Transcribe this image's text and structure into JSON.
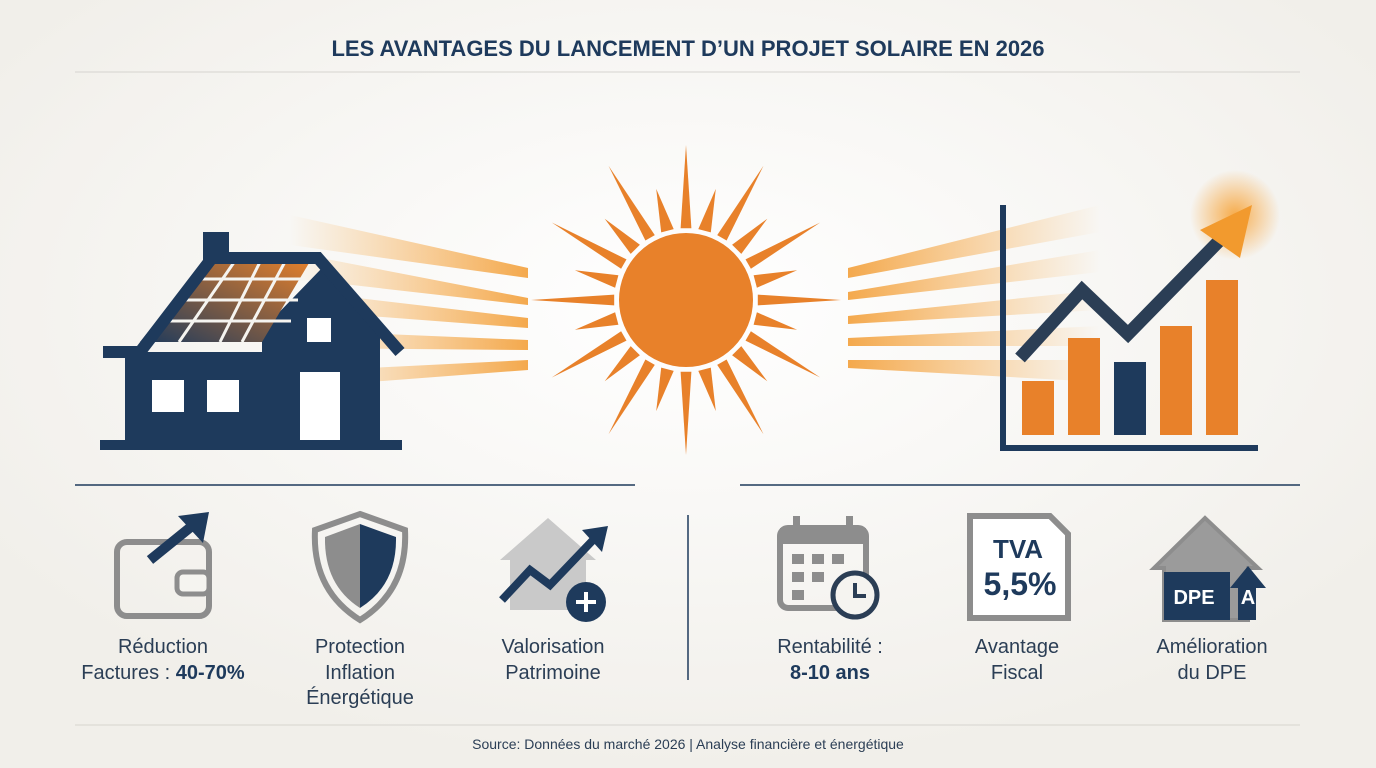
{
  "title": "LES AVANTAGES DU LANCEMENT D’UN PROJET SOLAIRE EN 2026",
  "benefits": [
    {
      "lines": [
        "Réduction",
        "Factures :"
      ],
      "value": "40-70%"
    },
    {
      "lines": [
        "Protection",
        "Inflation",
        "Énergétique"
      ]
    },
    {
      "lines": [
        "Valorisation",
        "Patrimoine"
      ]
    },
    {
      "lines": [
        "Rentabilité :"
      ],
      "value": "8-10 ans"
    },
    {
      "lines": [
        "Avantage",
        "Fiscal"
      ]
    },
    {
      "lines": [
        "Amélioration",
        "du DPE"
      ]
    }
  ],
  "icons": {
    "tva_label": "TVA",
    "tva_rate": "5,5%",
    "dpe_label": "DPE",
    "dpe_grade": "A"
  },
  "source": "Source: Données du marché 2026 | Analyse financière et énergétique"
}
